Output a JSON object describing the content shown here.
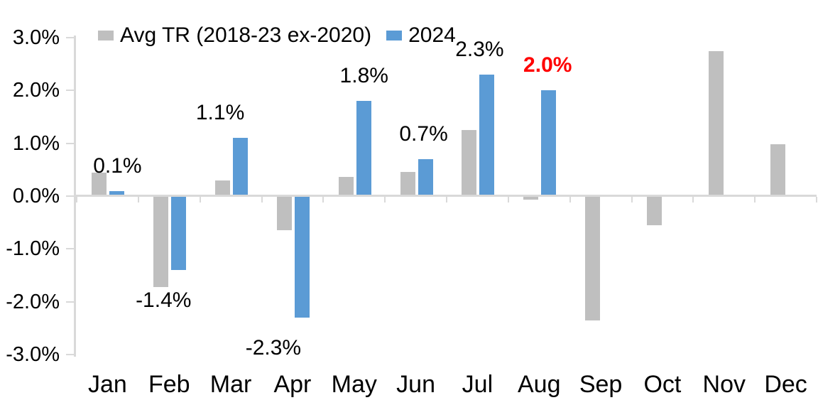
{
  "chart_data": {
    "type": "bar",
    "title": "",
    "categories": [
      "Jan",
      "Feb",
      "Mar",
      "Apr",
      "May",
      "Jun",
      "Jul",
      "Aug",
      "Sep",
      "Oct",
      "Nov",
      "Dec"
    ],
    "series": [
      {
        "name": "Avg TR (2018-23 ex-2020)",
        "color": "#BFBFBF",
        "values": [
          0.45,
          -1.72,
          0.3,
          -0.65,
          0.37,
          0.46,
          1.25,
          -0.07,
          -2.35,
          -0.55,
          2.75,
          0.98
        ]
      },
      {
        "name": "2024",
        "color": "#5B9BD5",
        "values": [
          0.1,
          -1.4,
          1.1,
          -2.3,
          1.8,
          0.7,
          2.3,
          2.0,
          null,
          null,
          null,
          null
        ]
      }
    ],
    "data_labels": [
      {
        "category": "Jan",
        "series": "2024",
        "text": "0.1%",
        "color": "#000000",
        "bold": false,
        "dx": 14
      },
      {
        "category": "Feb",
        "series": "2024",
        "text": "-1.4%",
        "color": "#000000",
        "bold": false,
        "dx": -8
      },
      {
        "category": "Mar",
        "series": "2024",
        "text": "1.1%",
        "color": "#000000",
        "bold": false,
        "dx": -15
      },
      {
        "category": "Apr",
        "series": "2024",
        "text": "-2.3%",
        "color": "#000000",
        "bold": false,
        "dx": -27
      },
      {
        "category": "May",
        "series": "2024",
        "text": "1.8%",
        "color": "#000000",
        "bold": false,
        "dx": 14
      },
      {
        "category": "Jun",
        "series": "2024",
        "text": "0.7%",
        "color": "#000000",
        "bold": false,
        "dx": 11
      },
      {
        "category": "Jul",
        "series": "2024",
        "text": "2.3%",
        "color": "#000000",
        "bold": false,
        "dx": 3
      },
      {
        "category": "Aug",
        "series": "2024",
        "text": "2.0%",
        "color": "#FF0000",
        "bold": true,
        "dx": 12
      }
    ],
    "y_axis": {
      "min": -3,
      "max": 3,
      "step": 1,
      "tick_labels": [
        "3.0%",
        "2.0%",
        "1.0%",
        "0.0%",
        "-1.0%",
        "-2.0%",
        "-3.0%"
      ]
    },
    "xlabel": "",
    "ylabel": "",
    "grid": false,
    "legend_position": "top",
    "colors": {
      "axis": "#D9D9D9",
      "text": "#000000",
      "highlight": "#FF0000",
      "background": "#FFFFFF"
    }
  }
}
